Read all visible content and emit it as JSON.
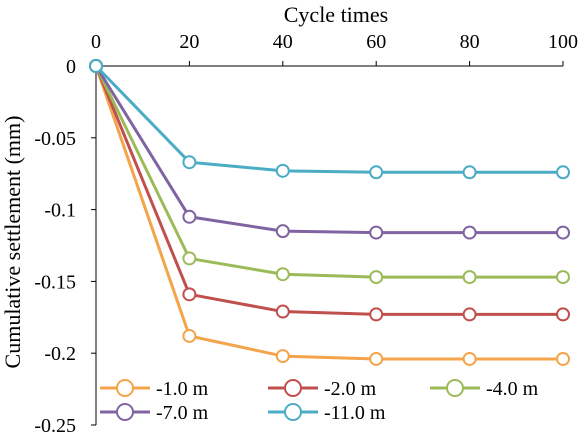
{
  "chart_data": {
    "type": "line",
    "title": "",
    "xlabel": "Cycle times",
    "ylabel": "Cumulative settlement (mm)",
    "x": [
      0,
      20,
      40,
      60,
      80,
      100
    ],
    "xlim": [
      0,
      100
    ],
    "ylim": [
      -0.25,
      0
    ],
    "xticks": [
      "0",
      "20",
      "40",
      "60",
      "80",
      "100"
    ],
    "yticks": [
      "0",
      "-0.05",
      "-0.1",
      "-0.15",
      "-0.2",
      "-0.25"
    ],
    "x_axis_position": "top",
    "grid": false,
    "legend_position": "bottom-inside",
    "series": [
      {
        "name": "-1.0 m",
        "color": "#F4A44A",
        "values": [
          0,
          -0.188,
          -0.202,
          -0.204,
          -0.204,
          -0.204
        ]
      },
      {
        "name": "-2.0 m",
        "color": "#C0504D",
        "values": [
          0,
          -0.159,
          -0.171,
          -0.173,
          -0.173,
          -0.173
        ]
      },
      {
        "name": "-4.0 m",
        "color": "#9BBB59",
        "values": [
          0,
          -0.134,
          -0.145,
          -0.147,
          -0.147,
          -0.147
        ]
      },
      {
        "name": "-7.0 m",
        "color": "#8064A2",
        "values": [
          0,
          -0.105,
          -0.115,
          -0.116,
          -0.116,
          -0.116
        ]
      },
      {
        "name": "-11.0 m",
        "color": "#4BACC6",
        "values": [
          0,
          -0.067,
          -0.073,
          -0.074,
          -0.074,
          -0.074
        ]
      }
    ]
  }
}
